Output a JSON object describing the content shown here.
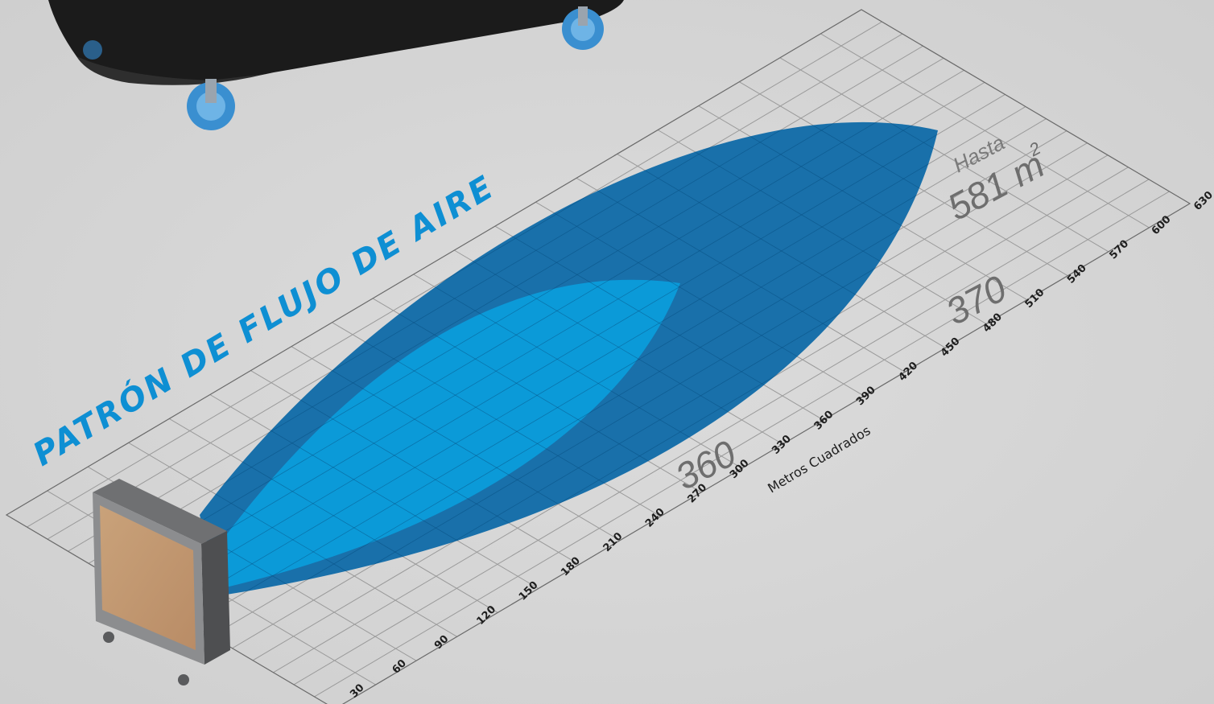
{
  "headline": "PATRÓN DE FLUJO DE AIRE",
  "axis": {
    "title": "Metros Cuadrados",
    "ticks": [
      "30",
      "60",
      "90",
      "120",
      "150",
      "180",
      "210",
      "240",
      "270",
      "300",
      "330",
      "360",
      "390",
      "420",
      "450",
      "480",
      "510",
      "540",
      "570",
      "600",
      "630"
    ]
  },
  "labels": {
    "area_360": "360",
    "area_370": "370",
    "hasta": "Hasta",
    "max_area": "581 m",
    "max_area_superscript": "2"
  },
  "colors": {
    "large_pattern": "#0f6aa8",
    "small_pattern": "#0b9ad8",
    "headline": "#0e8fd3",
    "background": "#d6d6d6"
  },
  "chart_data": {
    "type": "area",
    "xlabel": "Metros Cuadrados",
    "xlim": [
      0,
      630
    ],
    "xticks": [
      30,
      60,
      90,
      120,
      150,
      180,
      210,
      240,
      270,
      300,
      330,
      360,
      390,
      420,
      450,
      480,
      510,
      540,
      570,
      600,
      630
    ],
    "series": [
      {
        "name": "Hasta 581 m2",
        "extent": 581
      },
      {
        "name": "370",
        "extent": 370
      },
      {
        "name": "360",
        "extent": 360
      }
    ]
  }
}
